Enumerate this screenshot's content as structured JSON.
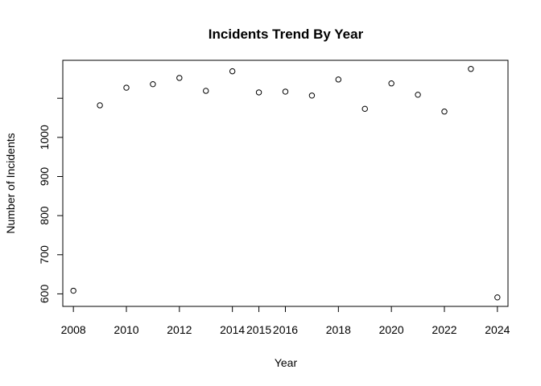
{
  "chart_data": {
    "type": "scatter",
    "title": "Incidents Trend By Year",
    "xlabel": "Year",
    "ylabel": "Number of Incidents",
    "x": [
      2008,
      2009,
      2010,
      2011,
      2012,
      2013,
      2014,
      2015,
      2016,
      2017,
      2018,
      2019,
      2020,
      2021,
      2022,
      2023,
      2024
    ],
    "y": [
      608,
      1082,
      1127,
      1136,
      1152,
      1119,
      1169,
      1115,
      1117,
      1107,
      1148,
      1073,
      1138,
      1109,
      1066,
      1175,
      591
    ],
    "xlim": [
      2007.6,
      2024.4
    ],
    "ylim": [
      568,
      1197
    ],
    "x_ticks": [
      {
        "value": 2008,
        "label": "2008"
      },
      {
        "value": 2010,
        "label": "2010"
      },
      {
        "value": 2012,
        "label": "2012"
      },
      {
        "value": 2014,
        "label": "2014"
      },
      {
        "value": 2015,
        "label": "2015"
      },
      {
        "value": 2016,
        "label": "2016"
      },
      {
        "value": 2018,
        "label": "2018"
      },
      {
        "value": 2020,
        "label": "2020"
      },
      {
        "value": 2022,
        "label": "2022"
      },
      {
        "value": 2024,
        "label": "2024"
      }
    ],
    "y_ticks": [
      {
        "value": 600,
        "label": "600"
      },
      {
        "value": 700,
        "label": "700"
      },
      {
        "value": 800,
        "label": "800"
      },
      {
        "value": 900,
        "label": "900"
      },
      {
        "value": 1000,
        "label": "1000"
      },
      {
        "value": 1100,
        "label": ""
      }
    ],
    "marker": "open-circle",
    "grid": false,
    "colors": {
      "point": "#000000",
      "axis": "#000000",
      "background": "#ffffff"
    }
  }
}
